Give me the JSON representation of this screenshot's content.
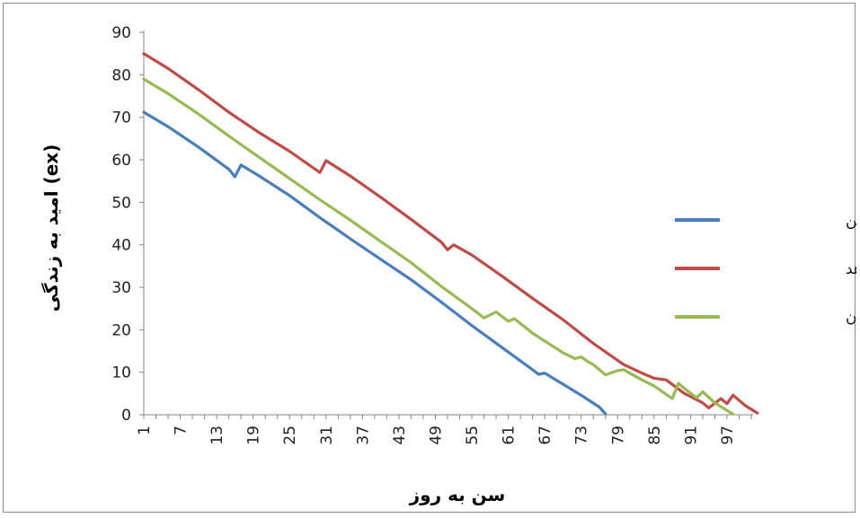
{
  "chart_data": {
    "type": "line",
    "title": "",
    "xlabel": "سن به روز",
    "ylabel": "امید به زندگی (ex)",
    "ylim": [
      0,
      90
    ],
    "xlim": [
      1,
      101
    ],
    "yticks": [
      "0",
      "10",
      "20",
      "30",
      "40",
      "50",
      "60",
      "70",
      "80",
      "90"
    ],
    "xticks": [
      "1",
      "7",
      "13",
      "19",
      "25",
      "31",
      "37",
      "43",
      "49",
      "55",
      "61",
      "67",
      "73",
      "79",
      "85",
      "91",
      "97"
    ],
    "grid": false,
    "legend_position": "right",
    "series": [
      {
        "name": "اسپیرودایکلوفن",
        "color": "#4a7ebb",
        "points": [
          [
            1,
            71.2
          ],
          [
            5,
            67.8
          ],
          [
            10,
            63.0
          ],
          [
            15,
            57.8
          ],
          [
            16,
            56.0
          ],
          [
            17,
            58.8
          ],
          [
            20,
            56.2
          ],
          [
            25,
            51.6
          ],
          [
            30,
            46.4
          ],
          [
            35,
            41.4
          ],
          [
            40,
            36.6
          ],
          [
            45,
            31.8
          ],
          [
            50,
            26.5
          ],
          [
            55,
            21.0
          ],
          [
            60,
            15.8
          ],
          [
            65,
            10.6
          ],
          [
            66,
            9.5
          ],
          [
            67,
            9.8
          ],
          [
            70,
            7.2
          ],
          [
            73,
            4.6
          ],
          [
            76,
            1.8
          ],
          [
            77,
            0.2
          ]
        ]
      },
      {
        "name": "شاهد",
        "color": "#be4b48",
        "points": [
          [
            1,
            85.0
          ],
          [
            5,
            81.5
          ],
          [
            10,
            76.5
          ],
          [
            15,
            71.2
          ],
          [
            20,
            66.4
          ],
          [
            25,
            62.0
          ],
          [
            30,
            57.0
          ],
          [
            31,
            59.8
          ],
          [
            35,
            56.2
          ],
          [
            40,
            51.2
          ],
          [
            45,
            46.0
          ],
          [
            50,
            40.6
          ],
          [
            51,
            38.8
          ],
          [
            52,
            40.0
          ],
          [
            55,
            37.6
          ],
          [
            60,
            32.6
          ],
          [
            65,
            27.4
          ],
          [
            70,
            22.4
          ],
          [
            75,
            16.8
          ],
          [
            80,
            11.8
          ],
          [
            83,
            9.8
          ],
          [
            85,
            8.6
          ],
          [
            87,
            8.2
          ],
          [
            90,
            5.0
          ],
          [
            93,
            2.8
          ],
          [
            94,
            1.6
          ],
          [
            96,
            3.8
          ],
          [
            97,
            2.6
          ],
          [
            98,
            4.6
          ],
          [
            100,
            2.2
          ],
          [
            102,
            0.4
          ]
        ]
      },
      {
        "name": "هگزافلومرون",
        "color": "#98b954",
        "points": [
          [
            1,
            79.0
          ],
          [
            5,
            75.6
          ],
          [
            10,
            70.8
          ],
          [
            15,
            65.6
          ],
          [
            20,
            60.6
          ],
          [
            25,
            55.6
          ],
          [
            30,
            50.6
          ],
          [
            35,
            45.8
          ],
          [
            40,
            40.8
          ],
          [
            45,
            35.8
          ],
          [
            50,
            30.2
          ],
          [
            55,
            25.0
          ],
          [
            57,
            22.8
          ],
          [
            59,
            24.2
          ],
          [
            61,
            22.0
          ],
          [
            62,
            22.6
          ],
          [
            65,
            19.2
          ],
          [
            70,
            14.6
          ],
          [
            72,
            13.2
          ],
          [
            73,
            13.6
          ],
          [
            74,
            12.6
          ],
          [
            75,
            11.8
          ],
          [
            77,
            9.4
          ],
          [
            79,
            10.4
          ],
          [
            80,
            10.6
          ],
          [
            83,
            8.2
          ],
          [
            85,
            6.8
          ],
          [
            88,
            3.8
          ],
          [
            89,
            7.4
          ],
          [
            90,
            6.2
          ],
          [
            92,
            4.0
          ],
          [
            93,
            5.4
          ],
          [
            95,
            2.8
          ],
          [
            97,
            1.0
          ],
          [
            98,
            0.2
          ]
        ]
      }
    ]
  }
}
